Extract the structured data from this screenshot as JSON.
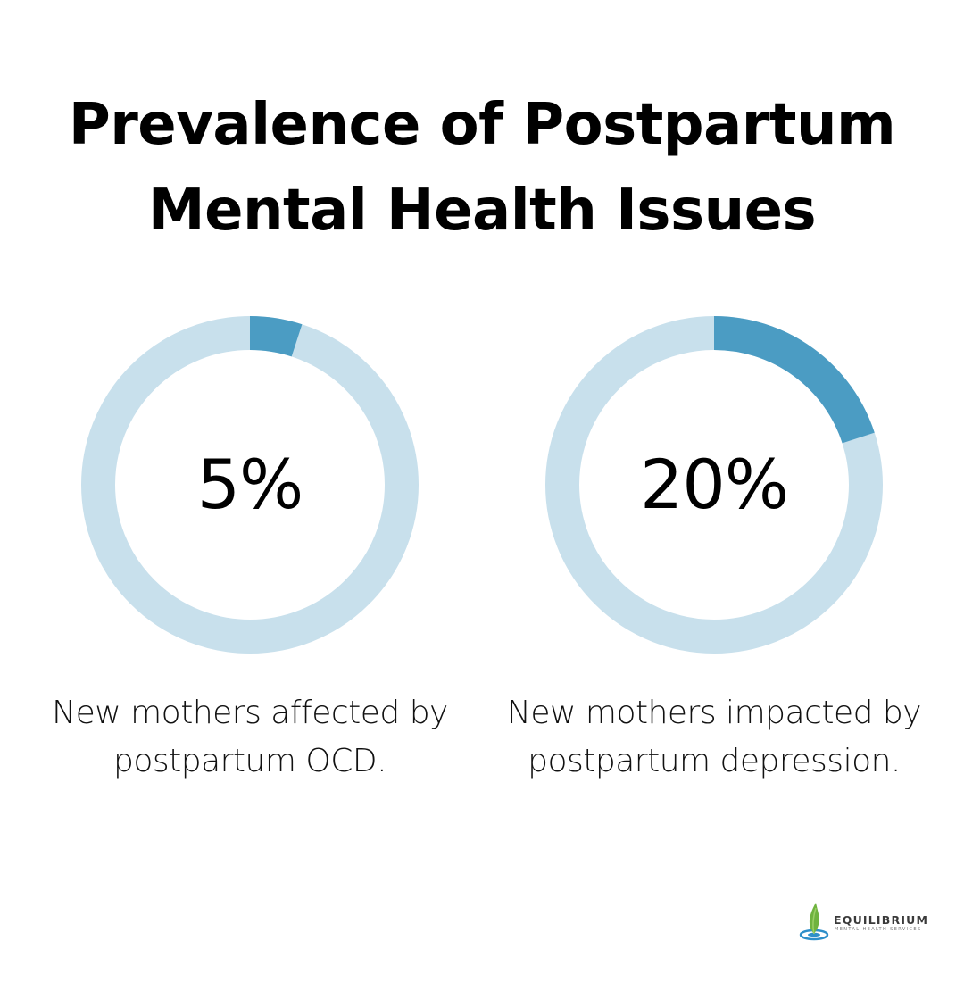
{
  "title": {
    "line1": "Prevalence of Postpartum",
    "line2": "Mental Health Issues"
  },
  "colors": {
    "track": "#c8e0ec",
    "fill": "#4b9cc3",
    "text": "#000000"
  },
  "chart_data": [
    {
      "type": "pie",
      "style": "donut",
      "value": 5,
      "max": 100,
      "label": "5%",
      "caption_line1": "New mothers affected by",
      "caption_line2": "postpartum OCD."
    },
    {
      "type": "pie",
      "style": "donut",
      "value": 20,
      "max": 100,
      "label": "20%",
      "caption_line1": "New mothers impacted by",
      "caption_line2": "postpartum depression."
    }
  ],
  "logo": {
    "name": "EQUILIBRIUM",
    "tagline": "MENTAL HEALTH SERVICES",
    "icon": "leaf-droplet-icon"
  }
}
